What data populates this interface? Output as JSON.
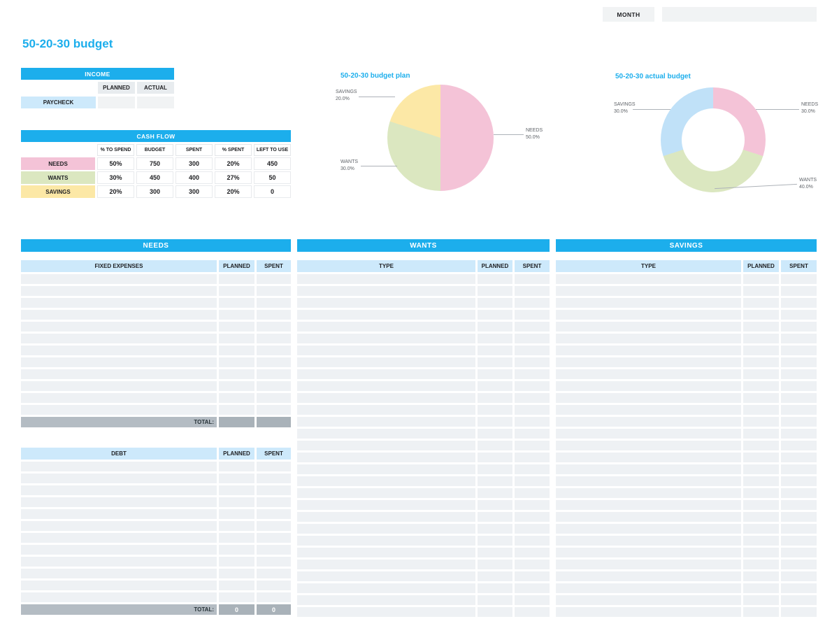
{
  "colors": {
    "accent": "#1caeec",
    "needs_pink": "#f4c3d7",
    "wants_green": "#dbe7c0",
    "savings_yellow": "#fce8a6",
    "savings_blue": "#c0e1f8",
    "light_blue_cell": "#cde9fb",
    "empty_row": "#eef1f4",
    "total_gray": "#a9b2b9"
  },
  "topbar": {
    "month_label": "MONTH",
    "month_value": ""
  },
  "page_title": "50-20-30 budget",
  "income": {
    "title": "INCOME",
    "columns": [
      "PLANNED",
      "ACTUAL"
    ],
    "rows": [
      {
        "label": "PAYCHECK",
        "planned": "",
        "actual": ""
      }
    ]
  },
  "cash_flow": {
    "title": "CASH FLOW",
    "columns": [
      "% TO SPEND",
      "BUDGET",
      "SPENT",
      "% SPENT",
      "LEFT TO USE"
    ],
    "rows": [
      {
        "label": "NEEDS",
        "values": [
          "50%",
          "750",
          "300",
          "20%",
          "450"
        ]
      },
      {
        "label": "WANTS",
        "values": [
          "30%",
          "450",
          "400",
          "27%",
          "50"
        ]
      },
      {
        "label": "SAVINGS",
        "values": [
          "20%",
          "300",
          "300",
          "20%",
          "0"
        ]
      }
    ]
  },
  "chart_data": [
    {
      "type": "pie",
      "title": "50-20-30 budget plan",
      "labels": [
        "NEEDS",
        "WANTS",
        "SAVINGS"
      ],
      "values": [
        50,
        30,
        20
      ],
      "colors": [
        "#f4c3d7",
        "#dbe7c0",
        "#fce8a6"
      ],
      "annotations": {
        "savings": {
          "label": "SAVINGS",
          "value": "20.0%"
        },
        "needs": {
          "label": "NEEDS",
          "value": "50.0%"
        },
        "wants": {
          "label": "WANTS",
          "value": "30.0%"
        }
      }
    },
    {
      "type": "donut",
      "title": "50-20-30 actual budget",
      "labels": [
        "NEEDS",
        "WANTS",
        "SAVINGS"
      ],
      "values": [
        30,
        40,
        30
      ],
      "colors": [
        "#f4c3d7",
        "#dbe7c0",
        "#c0e1f8"
      ],
      "annotations": {
        "savings": {
          "label": "SAVINGS",
          "value": "30.0%"
        },
        "needs": {
          "label": "NEEDS",
          "value": "30.0%"
        },
        "wants": {
          "label": "WANTS",
          "value": "40.0%"
        }
      }
    }
  ],
  "sections": {
    "needs": {
      "title": "NEEDS",
      "fixed": {
        "header": [
          "FIXED EXPENSES",
          "PLANNED",
          "SPENT"
        ],
        "row_count": 12,
        "total_label": "TOTAL:",
        "total_planned": "",
        "total_spent": ""
      },
      "debt": {
        "header": [
          "DEBT",
          "PLANNED",
          "SPENT"
        ],
        "row_count": 12,
        "total_label": "TOTAL:",
        "total_planned": "0",
        "total_spent": "0"
      }
    },
    "wants": {
      "title": "WANTS",
      "header": [
        "TYPE",
        "PLANNED",
        "SPENT"
      ],
      "row_count": 29
    },
    "savings": {
      "title": "SAVINGS",
      "header": [
        "TYPE",
        "PLANNED",
        "SPENT"
      ],
      "row_count": 29
    }
  }
}
